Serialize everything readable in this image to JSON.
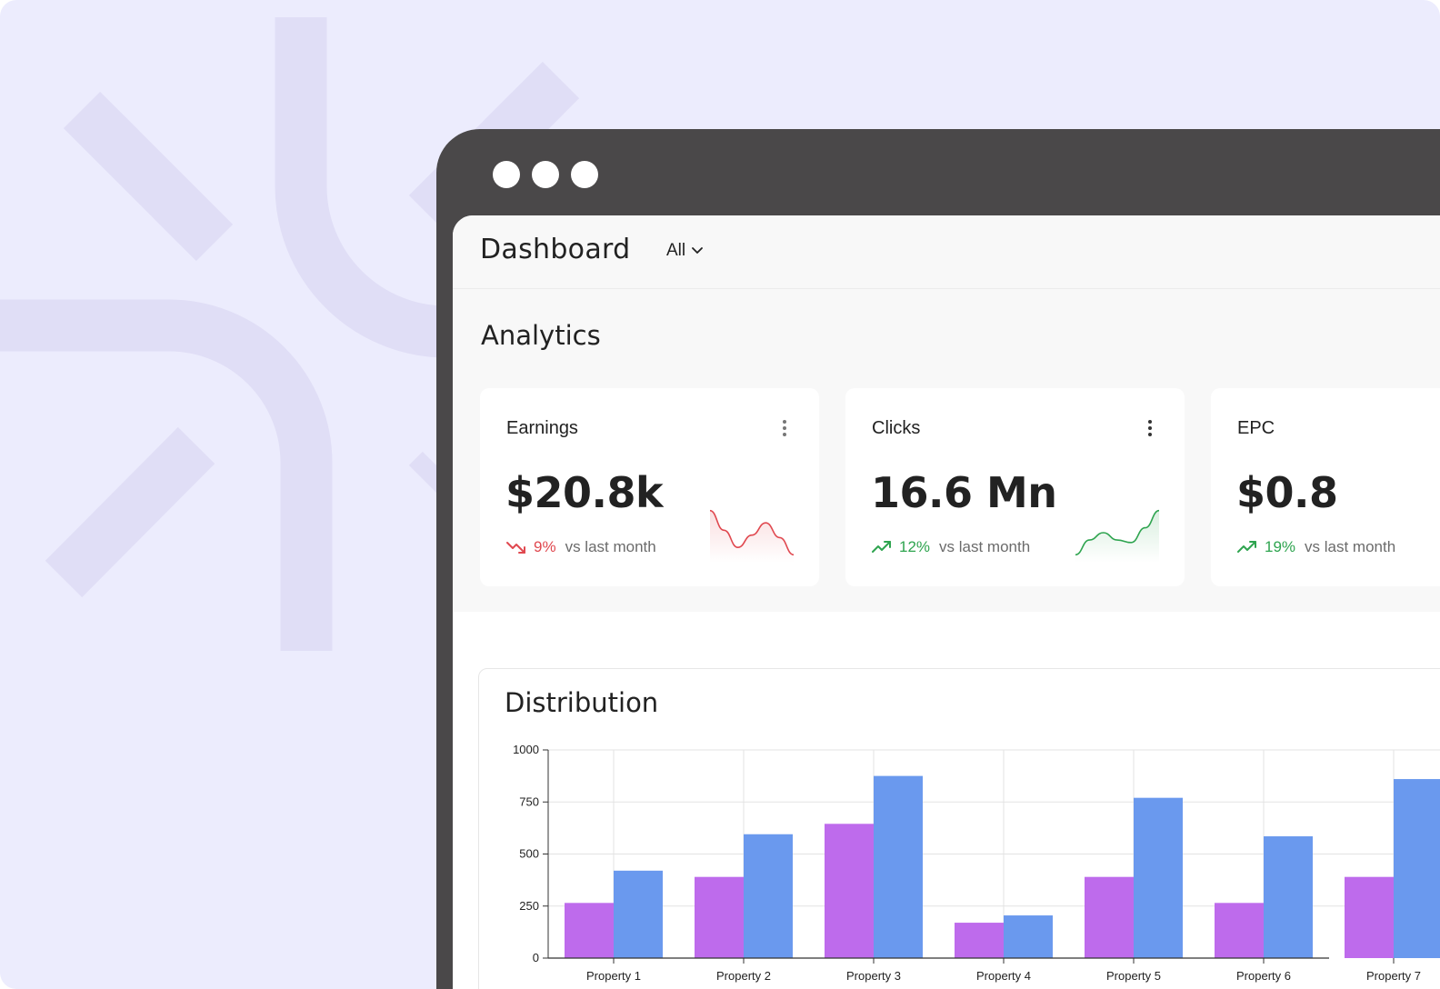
{
  "window": {
    "controls": [
      "close",
      "minimize",
      "maximize"
    ]
  },
  "header": {
    "title": "Dashboard",
    "filter_label": "All"
  },
  "analytics": {
    "title": "Analytics",
    "cards": [
      {
        "label": "Earnings",
        "value": "$20.8k",
        "change": "9%",
        "direction": "down",
        "note": "vs last month",
        "color": "#e0484f",
        "spark": [
          0.95,
          0.55,
          0.2,
          0.45,
          0.7,
          0.4,
          0.05
        ]
      },
      {
        "label": "Clicks",
        "value": "16.6 Mn",
        "change": "12%",
        "direction": "up",
        "note": "vs last month",
        "color": "#2ea44f",
        "spark": [
          0.05,
          0.35,
          0.5,
          0.35,
          0.3,
          0.6,
          0.95
        ]
      },
      {
        "label": "EPC",
        "value": "$0.8",
        "change": "19%",
        "direction": "up",
        "note": "vs last month",
        "color": "#2ea44f"
      }
    ]
  },
  "distribution": {
    "title": "Distribution",
    "chart_data": {
      "type": "bar",
      "categories": [
        "Property 1",
        "Property 2",
        "Property 3",
        "Property 4",
        "Property 5",
        "Property 6",
        "Property 7"
      ],
      "series": [
        {
          "values": [
            265,
            390,
            645,
            170,
            390,
            265,
            390
          ],
          "color": "#be6bec"
        },
        {
          "values": [
            420,
            595,
            875,
            205,
            770,
            585,
            860
          ],
          "color": "#6a99ee"
        }
      ],
      "ylim": [
        0,
        1000
      ],
      "yticks": [
        0,
        250,
        500,
        750,
        1000
      ],
      "grid": true
    }
  }
}
